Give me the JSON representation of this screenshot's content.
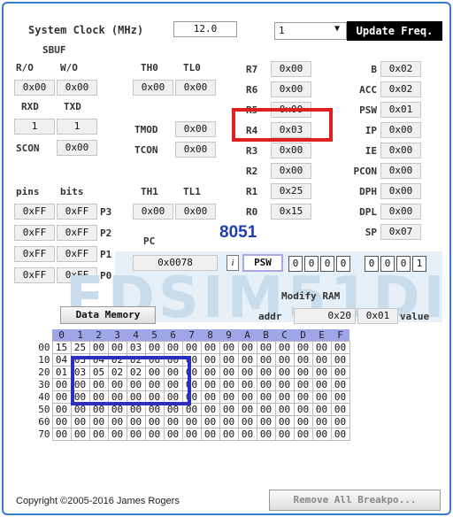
{
  "clock": {
    "label": "System Clock (MHz)",
    "value": "12.0"
  },
  "update": {
    "select_value": "1",
    "button_label": "Update Freq."
  },
  "sbuf": {
    "title": "SBUF",
    "ro_label": "R/O",
    "wo_label": "W/O",
    "ro_value": "0x00",
    "wo_value": "0x00"
  },
  "serial": {
    "rxd_label": "RXD",
    "txd_label": "TXD",
    "rxd_value": "1",
    "txd_value": "1",
    "scon_label": "SCON",
    "scon_value": "0x00"
  },
  "timer0": {
    "th_label": "TH0",
    "tl_label": "TL0",
    "th_value": "0x00",
    "tl_value": "0x00",
    "tmod_label": "TMOD",
    "tmod_value": "0x00",
    "tcon_label": "TCON",
    "tcon_value": "0x00"
  },
  "timer1": {
    "th_label": "TH1",
    "tl_label": "TL1",
    "th_value": "0x00",
    "tl_value": "0x00"
  },
  "registers": [
    {
      "name": "R7",
      "value": "0x00"
    },
    {
      "name": "R6",
      "value": "0x00"
    },
    {
      "name": "R5",
      "value": "0x00"
    },
    {
      "name": "R4",
      "value": "0x03"
    },
    {
      "name": "R3",
      "value": "0x00"
    },
    {
      "name": "R2",
      "value": "0x00"
    },
    {
      "name": "R1",
      "value": "0x25"
    },
    {
      "name": "R0",
      "value": "0x15"
    }
  ],
  "sfr": [
    {
      "name": "B",
      "value": "0x02"
    },
    {
      "name": "ACC",
      "value": "0x02"
    },
    {
      "name": "PSW",
      "value": "0x01"
    },
    {
      "name": "IP",
      "value": "0x00"
    },
    {
      "name": "IE",
      "value": "0x00"
    },
    {
      "name": "PCON",
      "value": "0x00"
    },
    {
      "name": "DPH",
      "value": "0x00"
    },
    {
      "name": "DPL",
      "value": "0x00"
    },
    {
      "name": "SP",
      "value": "0x07"
    }
  ],
  "ports": {
    "pins_label": "pins",
    "bits_label": "bits",
    "rows": [
      {
        "pins": "0xFF",
        "bits": "0xFF",
        "name": "P3"
      },
      {
        "pins": "0xFF",
        "bits": "0xFF",
        "name": "P2"
      },
      {
        "pins": "0xFF",
        "bits": "0xFF",
        "name": "P1"
      },
      {
        "pins": "0xFF",
        "bits": "0xFF",
        "name": "P0"
      }
    ]
  },
  "pc": {
    "label": "PC",
    "value": "0x0078"
  },
  "chip_label": "8051",
  "psw_bits": {
    "info": "i",
    "label": "PSW",
    "bits": [
      "0",
      "0",
      "0",
      "0",
      "0",
      "0",
      "0",
      "1"
    ]
  },
  "watermark": "EDSIM51DI",
  "modify_ram": {
    "title": "Modify RAM",
    "addr_label": "addr",
    "addr_value": "0x20",
    "data_value": "0x01",
    "value_label": "value"
  },
  "data_memory_button": "Data Memory",
  "memory": {
    "columns": [
      "0",
      "1",
      "2",
      "3",
      "4",
      "5",
      "6",
      "7",
      "8",
      "9",
      "A",
      "B",
      "C",
      "D",
      "E",
      "F"
    ],
    "rows": [
      {
        "addr": "00",
        "cells": [
          "15",
          "25",
          "00",
          "00",
          "03",
          "00",
          "00",
          "00",
          "00",
          "00",
          "00",
          "00",
          "00",
          "00",
          "00",
          "00"
        ]
      },
      {
        "addr": "10",
        "cells": [
          "04",
          "03",
          "04",
          "02",
          "02",
          "00",
          "00",
          "00",
          "00",
          "00",
          "00",
          "00",
          "00",
          "00",
          "00",
          "00"
        ]
      },
      {
        "addr": "20",
        "cells": [
          "01",
          "03",
          "05",
          "02",
          "02",
          "00",
          "00",
          "00",
          "00",
          "00",
          "00",
          "00",
          "00",
          "00",
          "00",
          "00"
        ]
      },
      {
        "addr": "30",
        "cells": [
          "00",
          "00",
          "00",
          "00",
          "00",
          "00",
          "00",
          "00",
          "00",
          "00",
          "00",
          "00",
          "00",
          "00",
          "00",
          "00"
        ]
      },
      {
        "addr": "40",
        "cells": [
          "00",
          "00",
          "00",
          "00",
          "00",
          "00",
          "00",
          "00",
          "00",
          "00",
          "00",
          "00",
          "00",
          "00",
          "00",
          "00"
        ]
      },
      {
        "addr": "50",
        "cells": [
          "00",
          "00",
          "00",
          "00",
          "00",
          "00",
          "00",
          "00",
          "00",
          "00",
          "00",
          "00",
          "00",
          "00",
          "00",
          "00"
        ]
      },
      {
        "addr": "60",
        "cells": [
          "00",
          "00",
          "00",
          "00",
          "00",
          "00",
          "00",
          "00",
          "00",
          "00",
          "00",
          "00",
          "00",
          "00",
          "00",
          "00"
        ]
      },
      {
        "addr": "70",
        "cells": [
          "00",
          "00",
          "00",
          "00",
          "00",
          "00",
          "00",
          "00",
          "00",
          "00",
          "00",
          "00",
          "00",
          "00",
          "00",
          "00"
        ]
      }
    ]
  },
  "footer": {
    "copyright": "Copyright ©2005-2016 James Rogers",
    "remove_button": "Remove All Breakpo..."
  },
  "colors": {
    "frame_border": "#3a7bd5",
    "header_blue": "#9fa6e8",
    "highlight_red": "#e02020",
    "highlight_blue": "#2d2dbf",
    "chip_label": "#1e3fb0"
  }
}
